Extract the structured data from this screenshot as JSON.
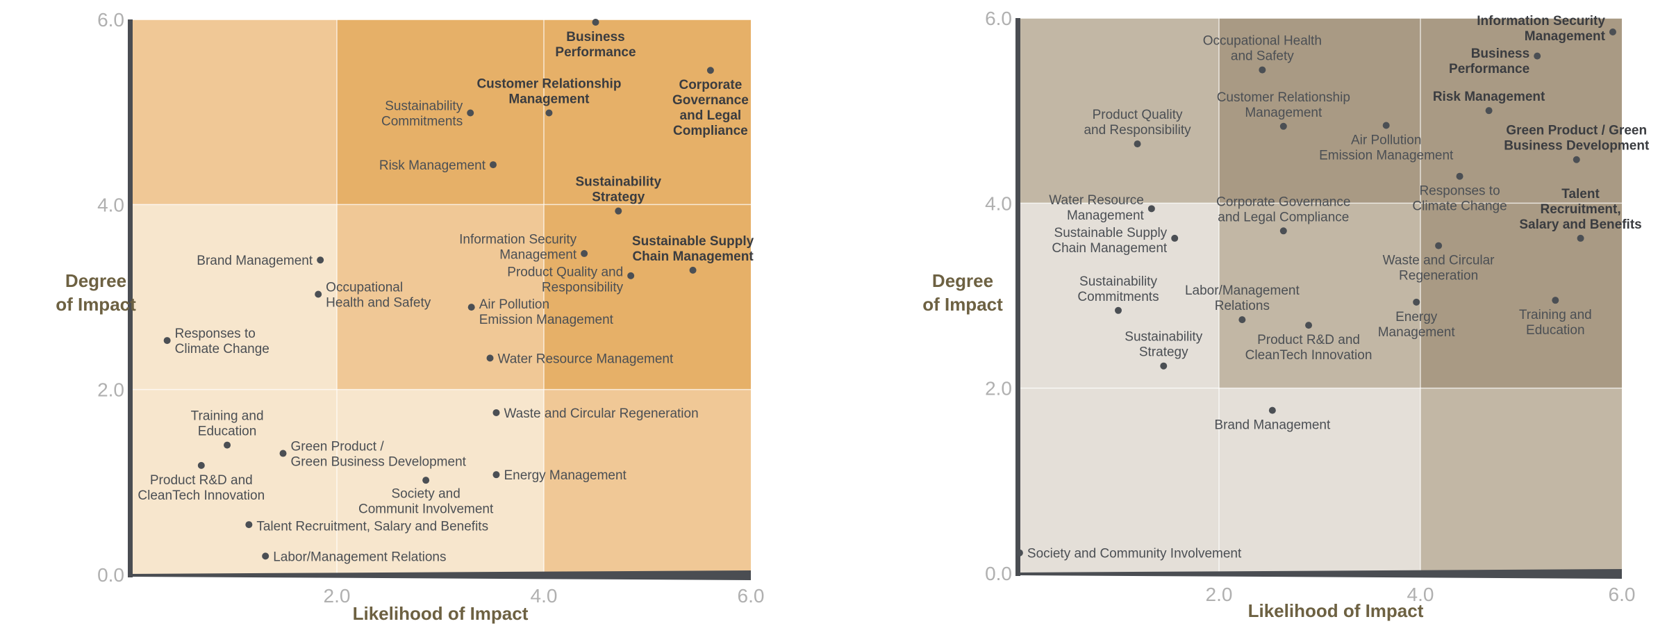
{
  "chart_data": [
    {
      "type": "scatter",
      "xlabel": "Likelihood of Impact",
      "ylabel": "Degree\nof Impact",
      "xlim": [
        0,
        6
      ],
      "ylim": [
        0,
        6
      ],
      "xticks": [
        "2.0",
        "4.0",
        "6.0"
      ],
      "yticks": [
        "6.0",
        "4.0",
        "2.0",
        "0.0"
      ],
      "grid": true,
      "zone_colors": {
        "low": "#f7e6cd",
        "medium": "#f0c896",
        "high": "#e6b068"
      },
      "zones": [
        [
          "medium",
          "high",
          "high"
        ],
        [
          "low",
          "medium",
          "high"
        ],
        [
          "low",
          "low",
          "medium"
        ]
      ],
      "point_color": "#4b4f54",
      "points": [
        {
          "label": "Business\nPerformance",
          "x": 4.5,
          "y": 5.97,
          "bold": true,
          "label_pos": "below"
        },
        {
          "label": "Corporate\nGovernance\nand Legal\nCompliance",
          "x": 5.61,
          "y": 5.45,
          "bold": true,
          "label_pos": "below"
        },
        {
          "label": "Customer Relationship\nManagement",
          "x": 4.05,
          "y": 4.99,
          "bold": true,
          "label_pos": "above"
        },
        {
          "label": "Sustainability\nCommitments",
          "x": 3.29,
          "y": 4.99,
          "bold": false,
          "label_pos": "left"
        },
        {
          "label": "Risk Management",
          "x": 3.51,
          "y": 4.43,
          "bold": false,
          "label_pos": "left"
        },
        {
          "label": "Sustainability\nStrategy",
          "x": 4.72,
          "y": 3.93,
          "bold": true,
          "label_pos": "above"
        },
        {
          "label": "Information Security\nManagement",
          "x": 4.39,
          "y": 3.47,
          "bold": false,
          "label_pos": "left"
        },
        {
          "label": "Sustainable Supply\nChain Management",
          "x": 5.44,
          "y": 3.29,
          "bold": true,
          "label_pos": "above"
        },
        {
          "label": "Product Quality and\nResponsibility",
          "x": 4.84,
          "y": 3.23,
          "bold": false,
          "label_pos": "left"
        },
        {
          "label": "Brand Management",
          "x": 1.84,
          "y": 3.4,
          "bold": false,
          "label_pos": "left"
        },
        {
          "label": "Occupational\nHealth and Safety",
          "x": 1.82,
          "y": 3.03,
          "bold": false,
          "label_pos": "right"
        },
        {
          "label": "Air Pollution\nEmission Management",
          "x": 3.3,
          "y": 2.89,
          "bold": false,
          "label_pos": "right"
        },
        {
          "label": "Water Resource Management",
          "x": 3.48,
          "y": 2.34,
          "bold": false,
          "label_pos": "right"
        },
        {
          "label": "Responses to\nClimate Change",
          "x": 0.36,
          "y": 2.53,
          "bold": false,
          "label_pos": "right"
        },
        {
          "label": "Waste and Circular Regeneration",
          "x": 3.54,
          "y": 1.75,
          "bold": false,
          "label_pos": "right"
        },
        {
          "label": "Training and\nEducation",
          "x": 0.94,
          "y": 1.4,
          "bold": false,
          "label_pos": "above"
        },
        {
          "label": "Green Product /\nGreen Business Development",
          "x": 1.48,
          "y": 1.31,
          "bold": false,
          "label_pos": "right"
        },
        {
          "label": "Product R&D and\nCleanTech Innovation",
          "x": 0.69,
          "y": 1.18,
          "bold": false,
          "label_pos": "below"
        },
        {
          "label": "Energy Management",
          "x": 3.54,
          "y": 1.08,
          "bold": false,
          "label_pos": "right"
        },
        {
          "label": "Society and\nCommunit Involvement",
          "x": 2.86,
          "y": 1.02,
          "bold": false,
          "label_pos": "below"
        },
        {
          "label": "Talent Recruitment, Salary and Benefits",
          "x": 1.15,
          "y": 0.54,
          "bold": false,
          "label_pos": "right"
        },
        {
          "label": "Labor/Management Relations",
          "x": 1.31,
          "y": 0.2,
          "bold": false,
          "label_pos": "right"
        }
      ]
    },
    {
      "type": "scatter",
      "xlabel": "Likelihood of Impact",
      "ylabel": "Degree\nof Impact",
      "xlim": [
        0,
        6
      ],
      "ylim": [
        0,
        6
      ],
      "xticks": [
        "2.0",
        "4.0",
        "6.0"
      ],
      "yticks": [
        "6.0",
        "4.0",
        "2.0",
        "0.0"
      ],
      "grid": true,
      "zone_colors": {
        "low": "#e4dfd8",
        "medium": "#c2b7a5",
        "high": "#a99a84"
      },
      "zones": [
        [
          "medium",
          "high",
          "high"
        ],
        [
          "low",
          "medium",
          "high"
        ],
        [
          "low",
          "low",
          "medium"
        ]
      ],
      "point_color": "#4b4f54",
      "points": [
        {
          "label": "Information Security\nManagement",
          "x": 5.91,
          "y": 5.85,
          "bold": true,
          "label_pos": "left"
        },
        {
          "label": "Business\nPerformance",
          "x": 5.16,
          "y": 5.59,
          "bold": true,
          "label_pos": "left"
        },
        {
          "label": "Occupational Health\nand Safety",
          "x": 2.43,
          "y": 5.44,
          "bold": false,
          "label_pos": "above"
        },
        {
          "label": "Risk Management",
          "x": 4.68,
          "y": 5.0,
          "bold": true,
          "label_pos": "above"
        },
        {
          "label": "Customer Relationship\nManagement",
          "x": 2.64,
          "y": 4.83,
          "bold": false,
          "label_pos": "above"
        },
        {
          "label": "Air Pollution\nEmission Management",
          "x": 3.66,
          "y": 4.84,
          "bold": false,
          "label_pos": "below"
        },
        {
          "label": "Product Quality\nand Responsibility",
          "x": 1.19,
          "y": 4.64,
          "bold": false,
          "label_pos": "above"
        },
        {
          "label": "Green Product / Green\nBusiness Development",
          "x": 5.55,
          "y": 4.47,
          "bold": true,
          "label_pos": "above"
        },
        {
          "label": "Responses to\nClimate Change",
          "x": 4.39,
          "y": 4.29,
          "bold": false,
          "label_pos": "below"
        },
        {
          "label": "Water Resource\nManagement",
          "x": 1.33,
          "y": 3.94,
          "bold": false,
          "label_pos": "left"
        },
        {
          "label": "Corporate Governance\nand Legal Compliance",
          "x": 2.64,
          "y": 3.7,
          "bold": false,
          "label_pos": "above"
        },
        {
          "label": "Sustainable Supply\nChain Management",
          "x": 1.56,
          "y": 3.62,
          "bold": false,
          "label_pos": "left"
        },
        {
          "label": "Talent\nRecruitment,\nSalary and Benefits",
          "x": 5.59,
          "y": 3.62,
          "bold": true,
          "label_pos": "above"
        },
        {
          "label": "Waste and Circular\nRegeneration",
          "x": 4.18,
          "y": 3.54,
          "bold": false,
          "label_pos": "below"
        },
        {
          "label": "Sustainability\nCommitments",
          "x": 1.0,
          "y": 2.84,
          "bold": false,
          "label_pos": "above"
        },
        {
          "label": "Labor/Management\nRelations",
          "x": 2.23,
          "y": 2.74,
          "bold": false,
          "label_pos": "above"
        },
        {
          "label": "Energy\nManagement",
          "x": 3.96,
          "y": 2.93,
          "bold": false,
          "label_pos": "below"
        },
        {
          "label": "Training and\nEducation",
          "x": 5.34,
          "y": 2.95,
          "bold": false,
          "label_pos": "below"
        },
        {
          "label": "Product R&D and\nCleanTech Innovation",
          "x": 2.89,
          "y": 2.68,
          "bold": false,
          "label_pos": "below"
        },
        {
          "label": "Sustainability\nStrategy",
          "x": 1.45,
          "y": 2.24,
          "bold": false,
          "label_pos": "above"
        },
        {
          "label": "Brand Management",
          "x": 2.53,
          "y": 1.76,
          "bold": false,
          "label_pos": "below"
        },
        {
          "label": "Society and Community Involvement",
          "x": 0.02,
          "y": 0.22,
          "bold": false,
          "label_pos": "right"
        }
      ]
    }
  ]
}
